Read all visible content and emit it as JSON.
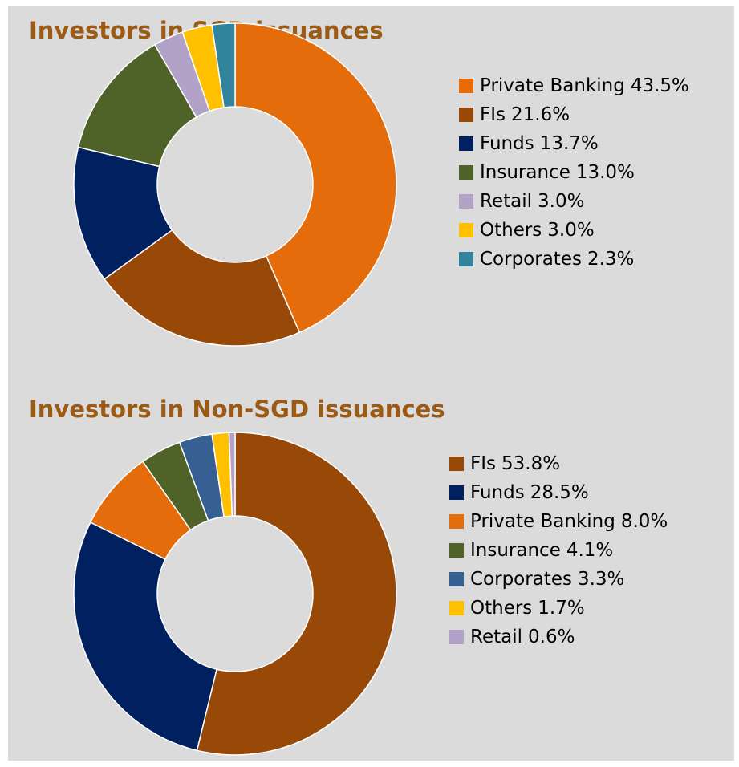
{
  "chart_data": [
    {
      "type": "donut",
      "title": "Investors in SGD issuances",
      "categories": [
        "Private Banking",
        "FIs",
        "Funds",
        "Insurance",
        "Retail",
        "Others",
        "Corporates"
      ],
      "values": [
        43.5,
        21.6,
        13.7,
        13.0,
        3.0,
        3.0,
        2.3
      ],
      "value_labels": [
        "43.5%",
        "21.6%",
        "13.7%",
        "13.0%",
        "3.0%",
        "3.0%",
        "2.3%"
      ],
      "colors": [
        "#e46c0a",
        "#984807",
        "#002060",
        "#4f6228",
        "#b3a2c7",
        "#ffc000",
        "#31849b"
      ],
      "legend": "right"
    },
    {
      "type": "donut",
      "title": "Investors in Non-SGD issuances",
      "categories": [
        "FIs",
        "Funds",
        "Private Banking",
        "Insurance",
        "Corporates",
        "Others",
        "Retail"
      ],
      "values": [
        53.8,
        28.5,
        8.0,
        4.1,
        3.3,
        1.7,
        0.6
      ],
      "value_labels": [
        "53.8%",
        "28.5%",
        "8.0%",
        "4.1%",
        "3.3%",
        "1.7%",
        "0.6%"
      ],
      "colors": [
        "#984807",
        "#002060",
        "#e46c0a",
        "#4f6228",
        "#376092",
        "#ffc000",
        "#b3a2c7"
      ],
      "legend": "right"
    }
  ]
}
